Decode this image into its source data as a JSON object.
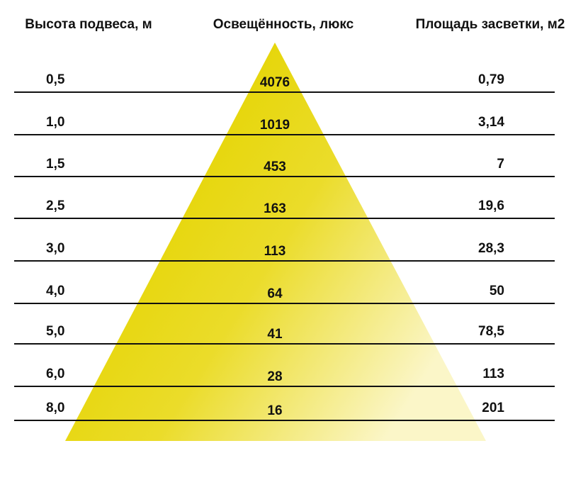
{
  "header": {
    "height": "Высота подвеса, м",
    "illuminance": "Освещённость, люкс",
    "area": "Площадь засветки, м2"
  },
  "rows": [
    {
      "height": "0,5",
      "illuminance": "4076",
      "area": "0,79"
    },
    {
      "height": "1,0",
      "illuminance": "1019",
      "area": "3,14"
    },
    {
      "height": "1,5",
      "illuminance": "453",
      "area": "7"
    },
    {
      "height": "2,5",
      "illuminance": "163",
      "area": "19,6"
    },
    {
      "height": "3,0",
      "illuminance": "113",
      "area": "28,3"
    },
    {
      "height": "4,0",
      "illuminance": "64",
      "area": "50"
    },
    {
      "height": "5,0",
      "illuminance": "41",
      "area": "78,5"
    },
    {
      "height": "6,0",
      "illuminance": "28",
      "area": "113"
    },
    {
      "height": "8,0",
      "illuminance": "16",
      "area": "201"
    }
  ]
}
